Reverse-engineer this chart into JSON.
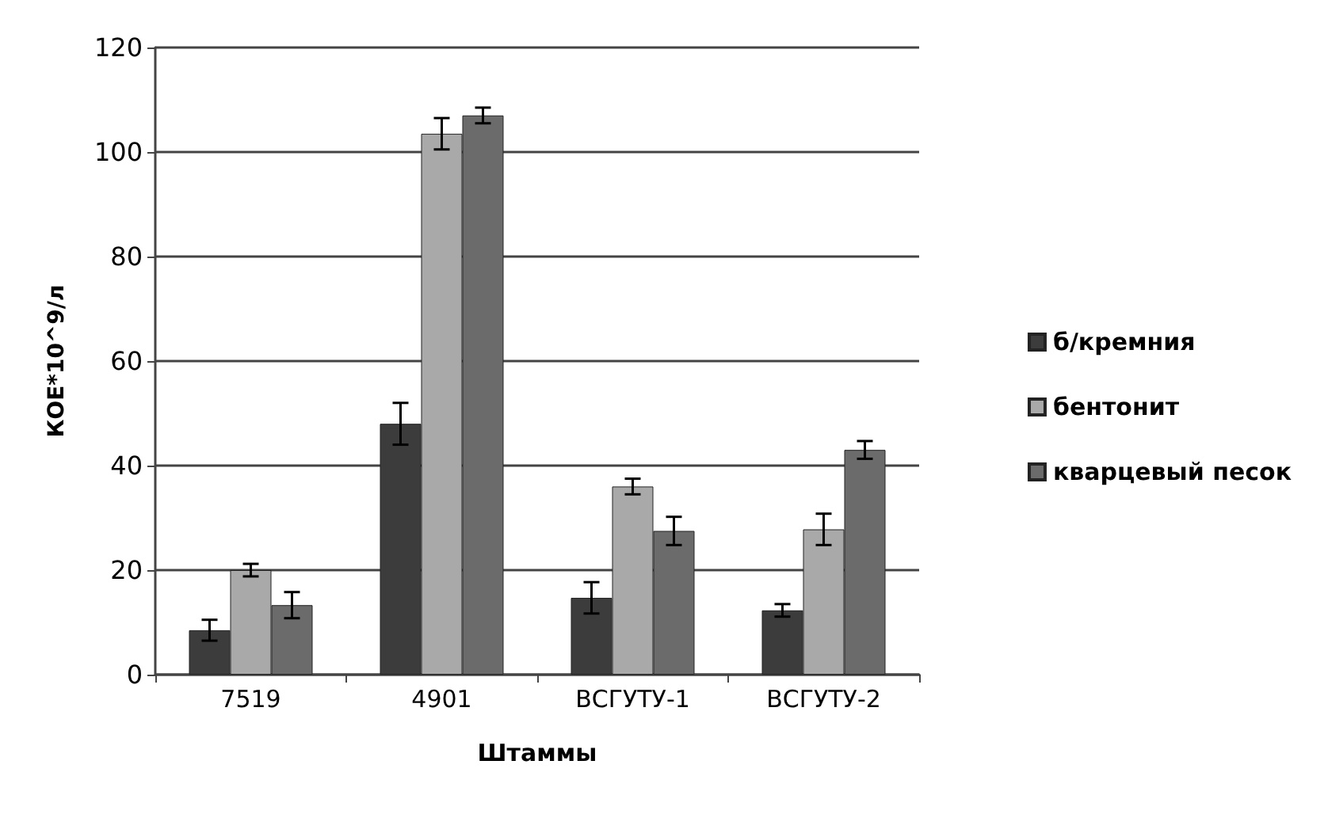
{
  "chart_data": {
    "type": "bar",
    "xlabel": "Штаммы",
    "ylabel": "КОЕ*10^9/л",
    "categories": [
      "7519",
      "4901",
      "ВСГУТУ-1",
      "ВСГУТУ-2"
    ],
    "series": [
      {
        "name": "б/кремния",
        "color": "#3c3c3c",
        "values": [
          8.5,
          48,
          14.7,
          12.3
        ],
        "errors": [
          2,
          4,
          3,
          1.2
        ]
      },
      {
        "name": "бентонит",
        "color": "#a9a9a9",
        "values": [
          20,
          103.5,
          36,
          27.8
        ],
        "errors": [
          1.2,
          3,
          1.5,
          3
        ]
      },
      {
        "name": "кварцевый песок",
        "color": "#6b6b6b",
        "values": [
          13.3,
          107,
          27.5,
          43
        ],
        "errors": [
          2.5,
          1.5,
          2.7,
          1.7
        ]
      }
    ],
    "ylim": [
      0,
      120
    ],
    "yticks": [
      0,
      20,
      40,
      60,
      80,
      100,
      120
    ],
    "grid": "y",
    "legend": "right"
  }
}
